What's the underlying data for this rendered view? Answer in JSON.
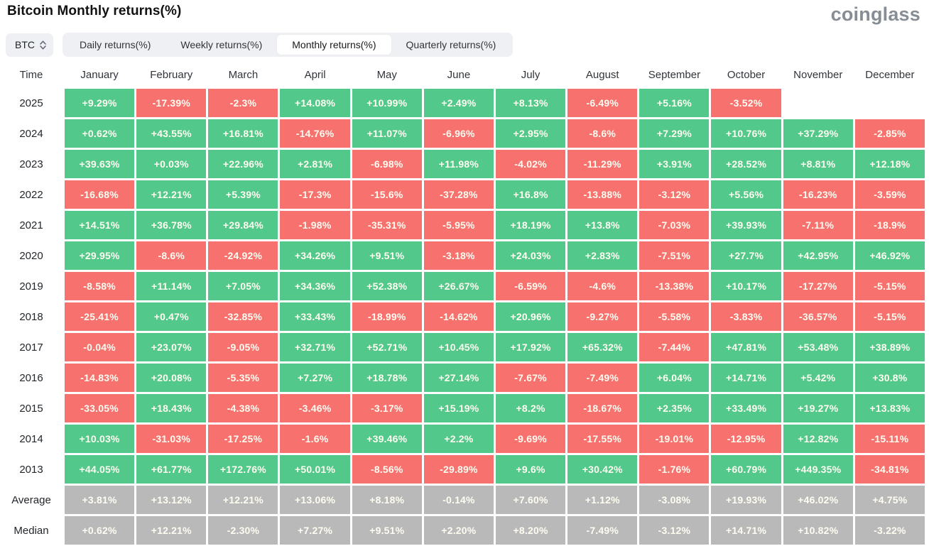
{
  "header": {
    "title": "Bitcoin Monthly returns(%)",
    "logo": "coinglass"
  },
  "controls": {
    "coin": "BTC",
    "coin_select_icon": "up-down-chevrons-icon",
    "tabs": [
      {
        "label": "Daily returns(%)",
        "active": false
      },
      {
        "label": "Weekly returns(%)",
        "active": false
      },
      {
        "label": "Monthly returns(%)",
        "active": true
      },
      {
        "label": "Quarterly returns(%)",
        "active": false
      }
    ]
  },
  "colors": {
    "positive": "#52c88a",
    "negative": "#f7716e",
    "summary": "#b9b9b9",
    "cell_text": "#fffdf2"
  },
  "chart_data": {
    "type": "heatmap",
    "title": "Bitcoin Monthly returns(%)",
    "corner_label": "Time",
    "columns": [
      "January",
      "February",
      "March",
      "April",
      "May",
      "June",
      "July",
      "August",
      "September",
      "October",
      "November",
      "December"
    ],
    "rows": [
      {
        "label": "2025",
        "type": "year",
        "values": [
          "+9.29%",
          "-17.39%",
          "-2.3%",
          "+14.08%",
          "+10.99%",
          "+2.49%",
          "+8.13%",
          "-6.49%",
          "+5.16%",
          "-3.52%",
          null,
          null
        ]
      },
      {
        "label": "2024",
        "type": "year",
        "values": [
          "+0.62%",
          "+43.55%",
          "+16.81%",
          "-14.76%",
          "+11.07%",
          "-6.96%",
          "+2.95%",
          "-8.6%",
          "+7.29%",
          "+10.76%",
          "+37.29%",
          "-2.85%"
        ]
      },
      {
        "label": "2023",
        "type": "year",
        "values": [
          "+39.63%",
          "+0.03%",
          "+22.96%",
          "+2.81%",
          "-6.98%",
          "+11.98%",
          "-4.02%",
          "-11.29%",
          "+3.91%",
          "+28.52%",
          "+8.81%",
          "+12.18%"
        ]
      },
      {
        "label": "2022",
        "type": "year",
        "values": [
          "-16.68%",
          "+12.21%",
          "+5.39%",
          "-17.3%",
          "-15.6%",
          "-37.28%",
          "+16.8%",
          "-13.88%",
          "-3.12%",
          "+5.56%",
          "-16.23%",
          "-3.59%"
        ]
      },
      {
        "label": "2021",
        "type": "year",
        "values": [
          "+14.51%",
          "+36.78%",
          "+29.84%",
          "-1.98%",
          "-35.31%",
          "-5.95%",
          "+18.19%",
          "+13.8%",
          "-7.03%",
          "+39.93%",
          "-7.11%",
          "-18.9%"
        ]
      },
      {
        "label": "2020",
        "type": "year",
        "values": [
          "+29.95%",
          "-8.6%",
          "-24.92%",
          "+34.26%",
          "+9.51%",
          "-3.18%",
          "+24.03%",
          "+2.83%",
          "-7.51%",
          "+27.7%",
          "+42.95%",
          "+46.92%"
        ]
      },
      {
        "label": "2019",
        "type": "year",
        "values": [
          "-8.58%",
          "+11.14%",
          "+7.05%",
          "+34.36%",
          "+52.38%",
          "+26.67%",
          "-6.59%",
          "-4.6%",
          "-13.38%",
          "+10.17%",
          "-17.27%",
          "-5.15%"
        ]
      },
      {
        "label": "2018",
        "type": "year",
        "values": [
          "-25.41%",
          "+0.47%",
          "-32.85%",
          "+33.43%",
          "-18.99%",
          "-14.62%",
          "+20.96%",
          "-9.27%",
          "-5.58%",
          "-3.83%",
          "-36.57%",
          "-5.15%"
        ]
      },
      {
        "label": "2017",
        "type": "year",
        "values": [
          "-0.04%",
          "+23.07%",
          "-9.05%",
          "+32.71%",
          "+52.71%",
          "+10.45%",
          "+17.92%",
          "+65.32%",
          "-7.44%",
          "+47.81%",
          "+53.48%",
          "+38.89%"
        ]
      },
      {
        "label": "2016",
        "type": "year",
        "values": [
          "-14.83%",
          "+20.08%",
          "-5.35%",
          "+7.27%",
          "+18.78%",
          "+27.14%",
          "-7.67%",
          "-7.49%",
          "+6.04%",
          "+14.71%",
          "+5.42%",
          "+30.8%"
        ]
      },
      {
        "label": "2015",
        "type": "year",
        "values": [
          "-33.05%",
          "+18.43%",
          "-4.38%",
          "-3.46%",
          "-3.17%",
          "+15.19%",
          "+8.2%",
          "-18.67%",
          "+2.35%",
          "+33.49%",
          "+19.27%",
          "+13.83%"
        ]
      },
      {
        "label": "2014",
        "type": "year",
        "values": [
          "+10.03%",
          "-31.03%",
          "-17.25%",
          "-1.6%",
          "+39.46%",
          "+2.2%",
          "-9.69%",
          "-17.55%",
          "-19.01%",
          "-12.95%",
          "+12.82%",
          "-15.11%"
        ]
      },
      {
        "label": "2013",
        "type": "year",
        "values": [
          "+44.05%",
          "+61.77%",
          "+172.76%",
          "+50.01%",
          "-8.56%",
          "-29.89%",
          "+9.6%",
          "+30.42%",
          "-1.76%",
          "+60.79%",
          "+449.35%",
          "-34.81%"
        ]
      },
      {
        "label": "Average",
        "type": "summary",
        "values": [
          "+3.81%",
          "+13.12%",
          "+12.21%",
          "+13.06%",
          "+8.18%",
          "-0.14%",
          "+7.60%",
          "+1.12%",
          "-3.08%",
          "+19.93%",
          "+46.02%",
          "+4.75%"
        ]
      },
      {
        "label": "Median",
        "type": "summary",
        "values": [
          "+0.62%",
          "+12.21%",
          "-2.30%",
          "+7.27%",
          "+9.51%",
          "+2.20%",
          "+8.20%",
          "-7.49%",
          "-3.12%",
          "+14.71%",
          "+10.82%",
          "-3.22%"
        ]
      }
    ]
  }
}
